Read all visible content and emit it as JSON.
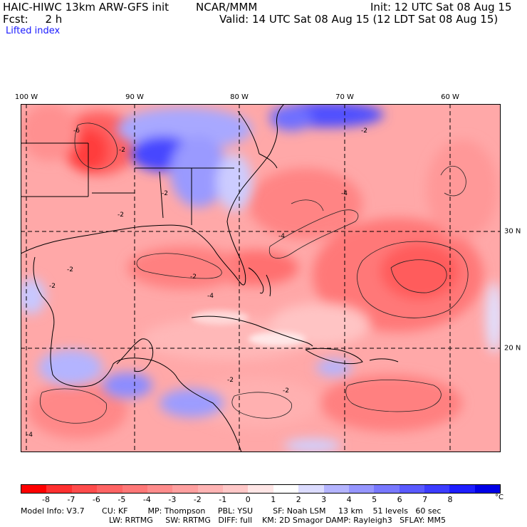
{
  "header": {
    "model_title": "HAIC-HIWC 13km ARW-GFS init",
    "org": "NCAR/MMM",
    "init_text": "Init: 12 UTC Sat 08 Aug 15",
    "fcst_text": "Fcst:     2 h",
    "valid_text": "Valid: 14 UTC Sat 08 Aug 15 (12 LDT Sat 08 Aug 15)",
    "field_name": "Lifted index"
  },
  "map": {
    "lon_labels": [
      "100 W",
      "90 W",
      "80 W",
      "70 W",
      "60 W"
    ],
    "lat_labels": [
      "30 N",
      "20 N"
    ],
    "contour_labels": [
      "-6",
      "-2",
      "-2",
      "-2",
      "-4",
      "-2",
      "-2",
      "-4",
      "-4",
      "-2",
      "-2",
      "-2",
      "-2",
      "-4"
    ]
  },
  "colorbar": {
    "colors": [
      "#ff0000",
      "#ff3030",
      "#ff4c4c",
      "#ff6464",
      "#ff7878",
      "#ff8c8c",
      "#ffa0a0",
      "#ffb4b4",
      "#ffc8c8",
      "#ffe6e6",
      "#ffffff",
      "#dcdcff",
      "#b4b4ff",
      "#9696ff",
      "#7878ff",
      "#5a5aff",
      "#3c3cff",
      "#1e1eff",
      "#0000e6"
    ],
    "ticks": [
      "-8",
      "-7",
      "-6",
      "-5",
      "-4",
      "-3",
      "-2",
      "-1",
      "0",
      "1",
      "2",
      "3",
      "4",
      "5",
      "6",
      "7",
      "8"
    ],
    "unit": "°C"
  },
  "footer": {
    "line1": "Model Info: V3.7       CU: KF        MP: Thompson     PBL: YSU        SF: Noah LSM     13 km    51 levels   60 sec",
    "line2": "LW: RRTMG     SW: RRTMG   DIFF: full    KM: 2D Smagor DAMP: Rayleigh3   SFLAY: MM5"
  }
}
